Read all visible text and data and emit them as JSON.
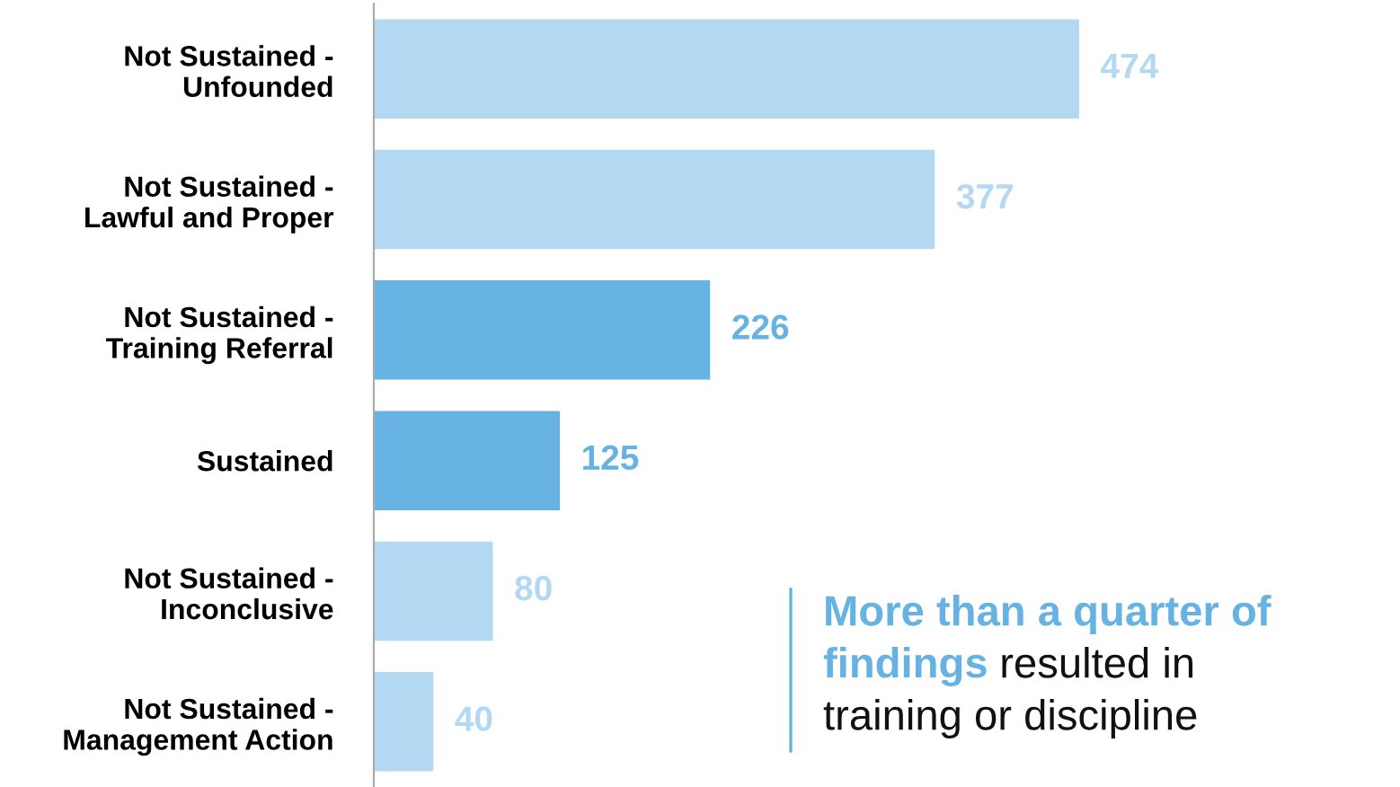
{
  "chart_data": {
    "type": "bar",
    "orientation": "horizontal",
    "data_labels": true,
    "grid": false,
    "legend": false,
    "tick_labels": "y",
    "categories": [
      "Not Sustained -\nUnfounded",
      "Not Sustained -\nLawful and Proper",
      "Not Sustained -\nTraining Referral",
      "Sustained",
      "Not Sustained -\nInconclusive",
      "Not Sustained -\nManagement Action"
    ],
    "values": [
      474,
      377,
      226,
      125,
      80,
      40
    ],
    "colors": [
      "#b3d9f2",
      "#b3d9f2",
      "#66b3e3",
      "#66b3e3",
      "#b3d9f2",
      "#b3d9f2"
    ],
    "annotations": [
      "More than a quarter of findings",
      "resulted in training or discipline"
    ]
  }
}
